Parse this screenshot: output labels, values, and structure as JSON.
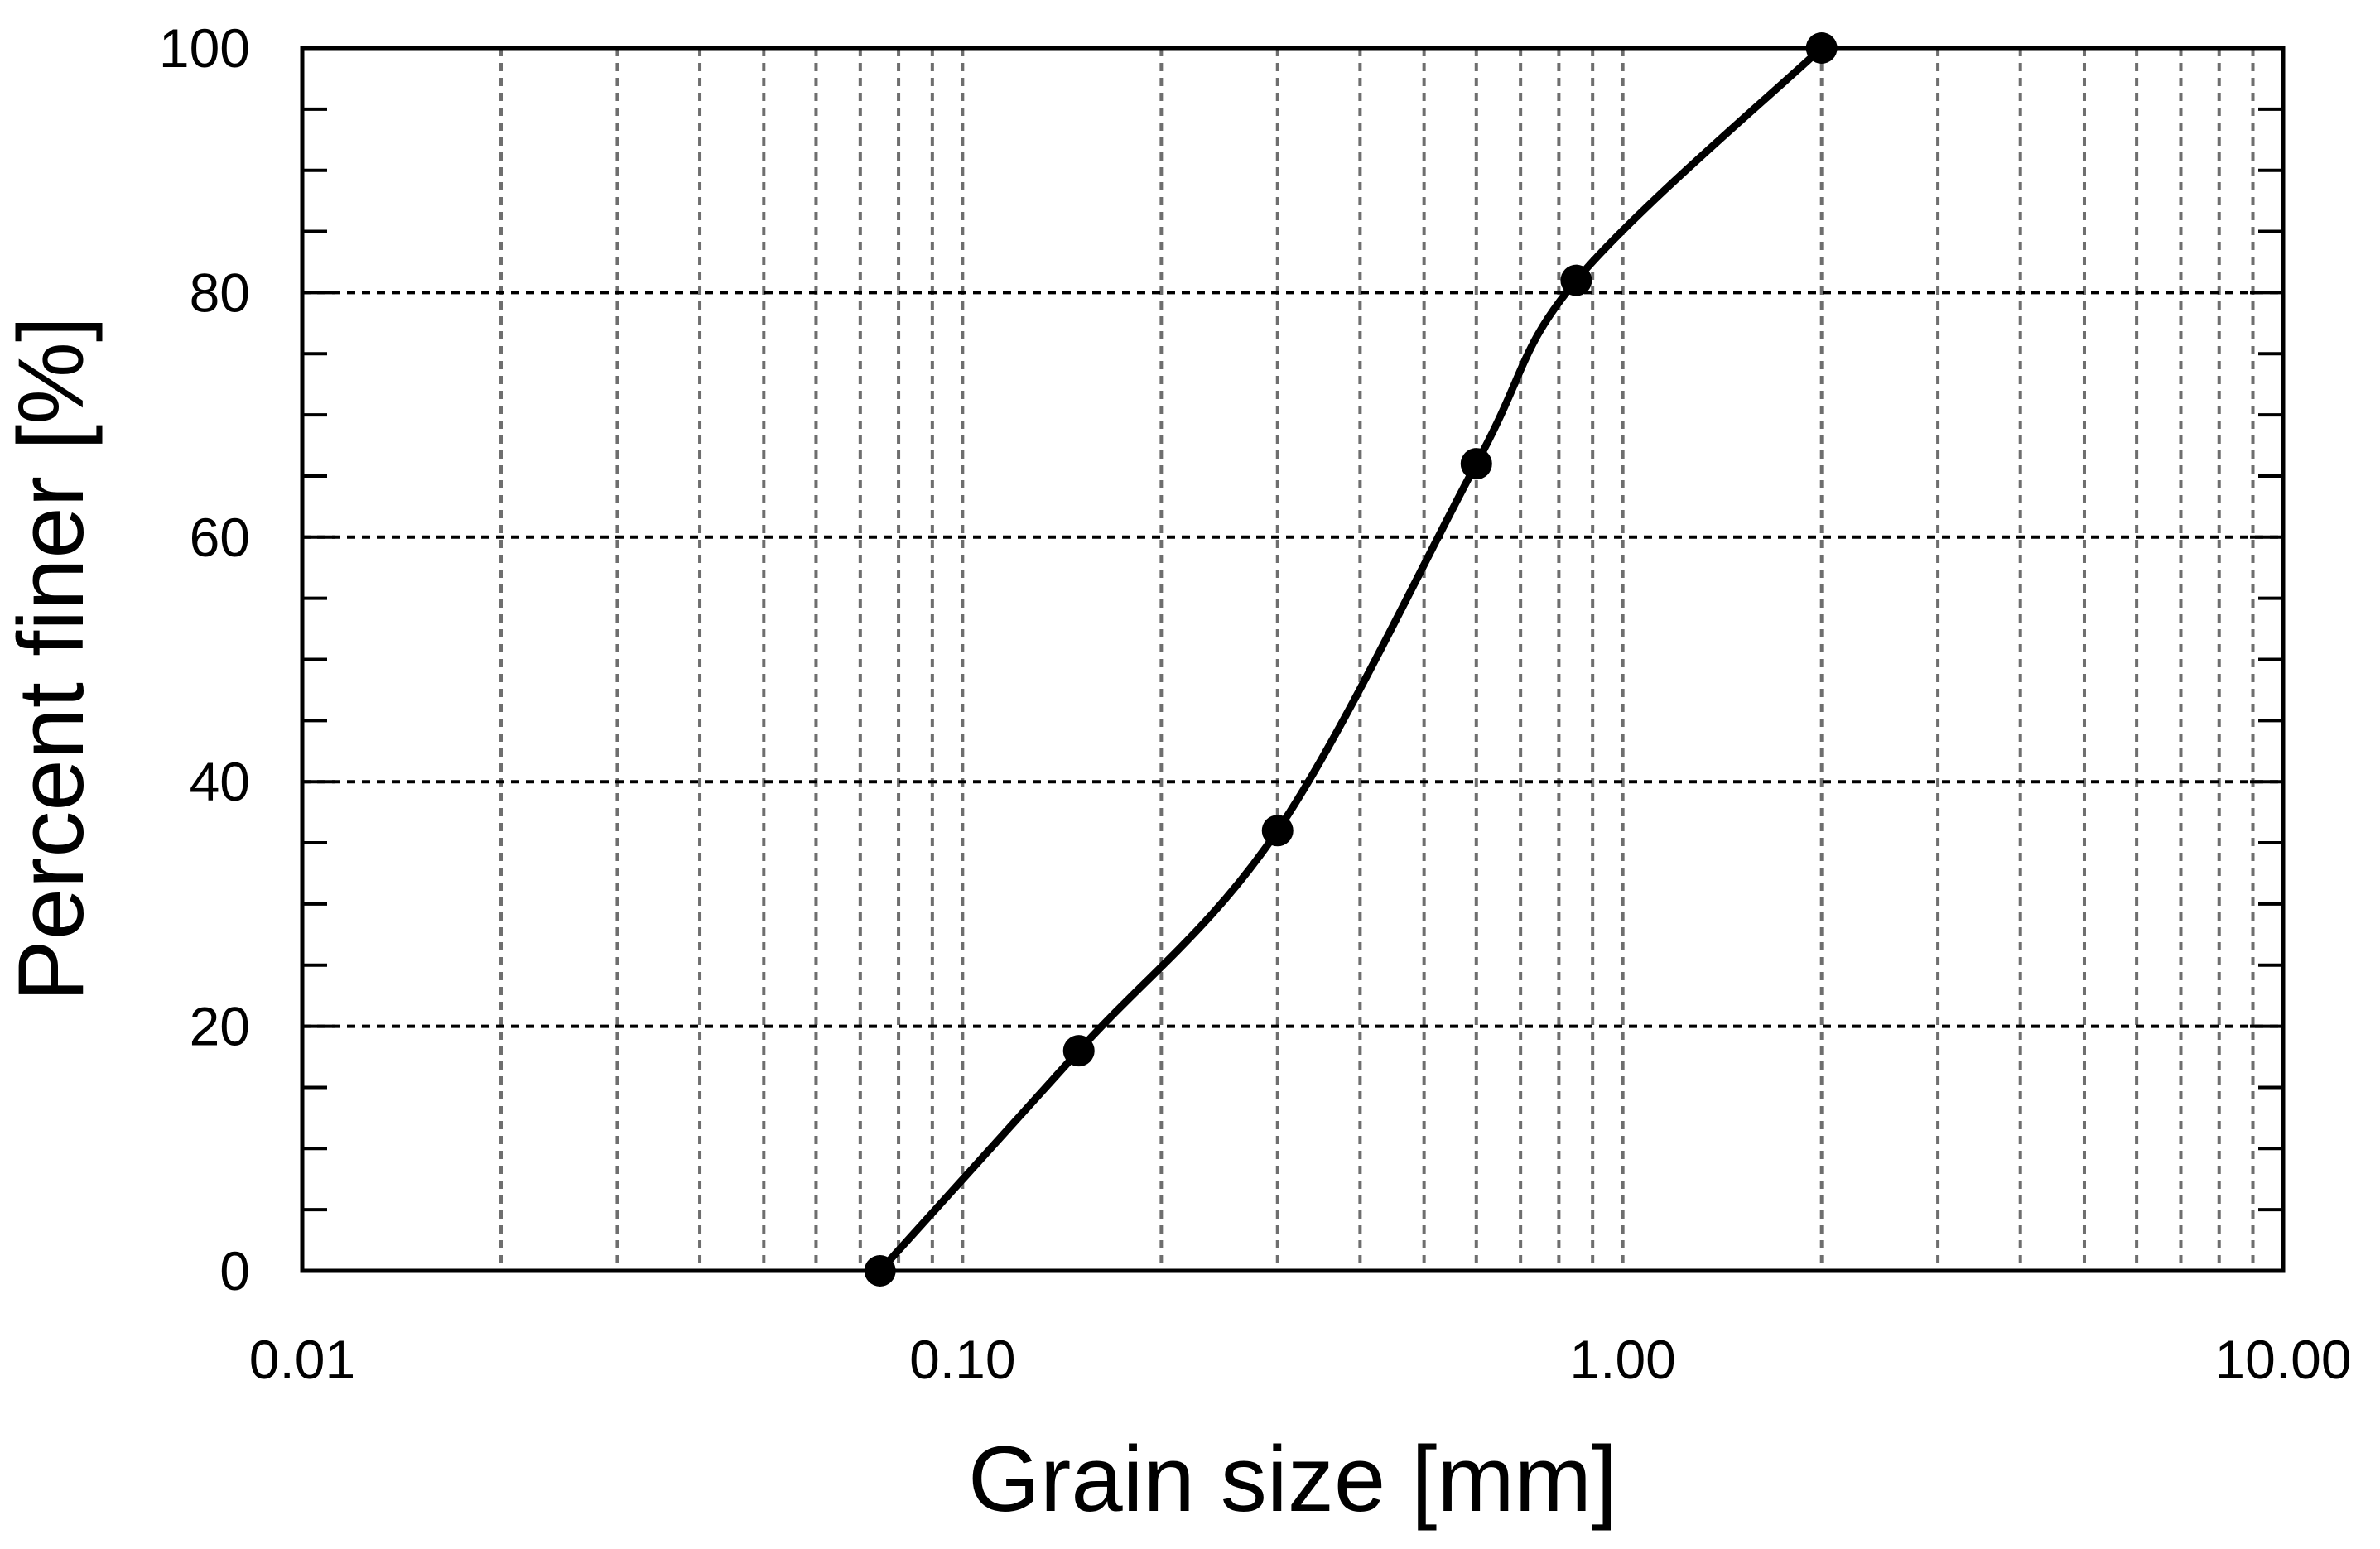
{
  "chart_data": {
    "type": "line",
    "xlabel": "Grain size [mm]",
    "ylabel": "Percent finer [%]",
    "x_scale": "log",
    "xlim": [
      0.01,
      10
    ],
    "ylim": [
      0,
      100
    ],
    "x_ticks": [
      {
        "value": 0.01,
        "label": "0.01"
      },
      {
        "value": 0.1,
        "label": "0.10"
      },
      {
        "value": 1,
        "label": "1.00"
      },
      {
        "value": 10,
        "label": "10.00"
      }
    ],
    "y_ticks": [
      {
        "value": 0,
        "label": "0"
      },
      {
        "value": 20,
        "label": "20"
      },
      {
        "value": 40,
        "label": "40"
      },
      {
        "value": 60,
        "label": "60"
      },
      {
        "value": 80,
        "label": "80"
      },
      {
        "value": 100,
        "label": "100"
      }
    ],
    "grid": true,
    "series": [
      {
        "x": [
          0.075,
          0.15,
          0.3,
          0.6,
          0.85,
          2.0
        ],
        "y": [
          0,
          18,
          36,
          66,
          81,
          100
        ],
        "marker": "circle",
        "color": "#000000"
      }
    ]
  }
}
